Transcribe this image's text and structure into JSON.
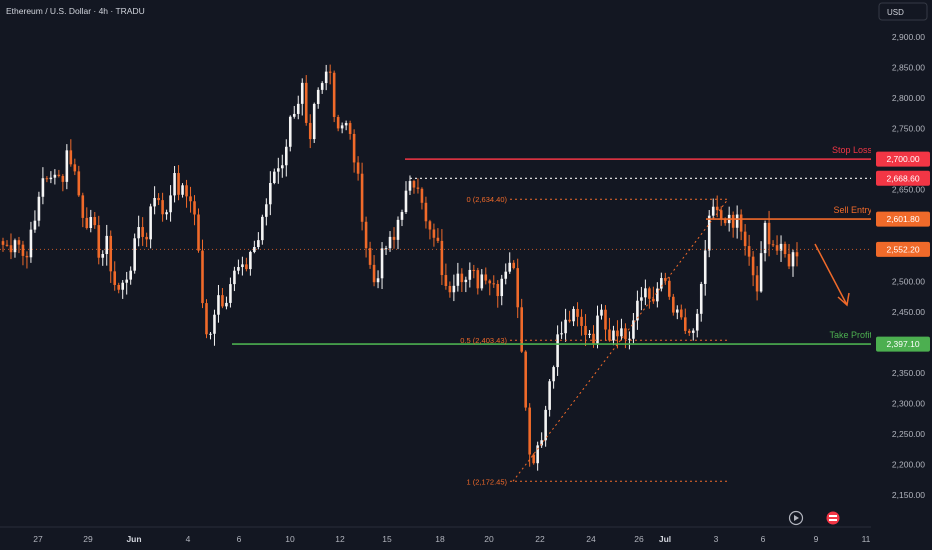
{
  "header": {
    "symbol_title": "Ethereum / U.S. Dollar · 4h · TRADU"
  },
  "currency_button": {
    "label": "USD"
  },
  "chart_data": {
    "type": "candlestick",
    "title": "Ethereum / U.S. Dollar · 4h · TRADU",
    "y_unit": "USD",
    "ylim": [
      2120,
      2930
    ],
    "y_ticks": [
      "2,900.00",
      "2,850.00",
      "2,800.00",
      "2,750.00",
      "2,700.00",
      "2,650.00",
      "2,600.00",
      "2,550.00",
      "2,500.00",
      "2,450.00",
      "2,400.00",
      "2,350.00",
      "2,300.00",
      "2,250.00",
      "2,200.00",
      "2,150.00"
    ],
    "x_ticks": [
      "27",
      "29",
      "Jun",
      "4",
      "6",
      "10",
      "12",
      "15",
      "18",
      "20",
      "22",
      "24",
      "26",
      "Jul",
      "3",
      "6",
      "9",
      "11"
    ],
    "colors": {
      "up": "#f5f5f5",
      "down": "#f06a2a",
      "stop": "#f23645",
      "entry": "#f06a2a",
      "tp": "#4caf50",
      "fib": "#f06a2a",
      "bg": "#131722",
      "axis_text": "#b2b5be"
    },
    "levels": [
      {
        "name": "stop-loss",
        "label": "Stop Loss",
        "value": 2700.0,
        "price_label": "2,700.00"
      },
      {
        "name": "level-high",
        "label": "",
        "value": 2668.6,
        "price_label": "2,668.60"
      },
      {
        "name": "sell-entry",
        "label": "Sell Entry",
        "value": 2601.8,
        "price_label": "2,601.80"
      },
      {
        "name": "current-price",
        "label": "",
        "value": 2552.2,
        "price_label": "2,552.20"
      },
      {
        "name": "take-profit",
        "label": "Take Profit",
        "value": 2397.1,
        "price_label": "2,397.10"
      }
    ],
    "fib_levels": [
      {
        "label": "0 (2,634.40)",
        "value": 2634.4
      },
      {
        "label": "0.5 (2,403.43)",
        "value": 2403.43
      },
      {
        "label": "1 (2,172.45)",
        "value": 2172.45
      }
    ],
    "price_path": [
      2560,
      2555,
      2580,
      2540,
      2560,
      2600,
      2680,
      2650,
      2690,
      2660,
      2720,
      2680,
      2620,
      2600,
      2580,
      2540,
      2560,
      2500,
      2480,
      2510,
      2540,
      2600,
      2560,
      2660,
      2620,
      2610,
      2670,
      2650,
      2640,
      2640,
      2560,
      2400,
      2430,
      2480,
      2470,
      2500,
      2520,
      2510,
      2550,
      2560,
      2600,
      2660,
      2700,
      2680,
      2780,
      2760,
      2810,
      2700,
      2800,
      2820,
      2880,
      2760,
      2760,
      2750,
      2700,
      2630,
      2540,
      2500,
      2530,
      2560,
      2560,
      2620,
      2640,
      2660,
      2670,
      2590,
      2570,
      2550,
      2480,
      2500,
      2530,
      2500,
      2510,
      2500,
      2520,
      2500,
      2490,
      2520,
      2540,
      2480,
      2360,
      2200,
      2230,
      2260,
      2340,
      2400,
      2420,
      2440,
      2440,
      2420,
      2420,
      2410,
      2470,
      2410,
      2430,
      2420,
      2400,
      2440,
      2470,
      2500,
      2450,
      2510,
      2480,
      2450,
      2430,
      2420,
      2410,
      2450,
      2560,
      2620,
      2600,
      2610,
      2580,
      2610,
      2550,
      2520,
      2480,
      2590,
      2570,
      2550,
      2540,
      2535,
      2552
    ]
  }
}
